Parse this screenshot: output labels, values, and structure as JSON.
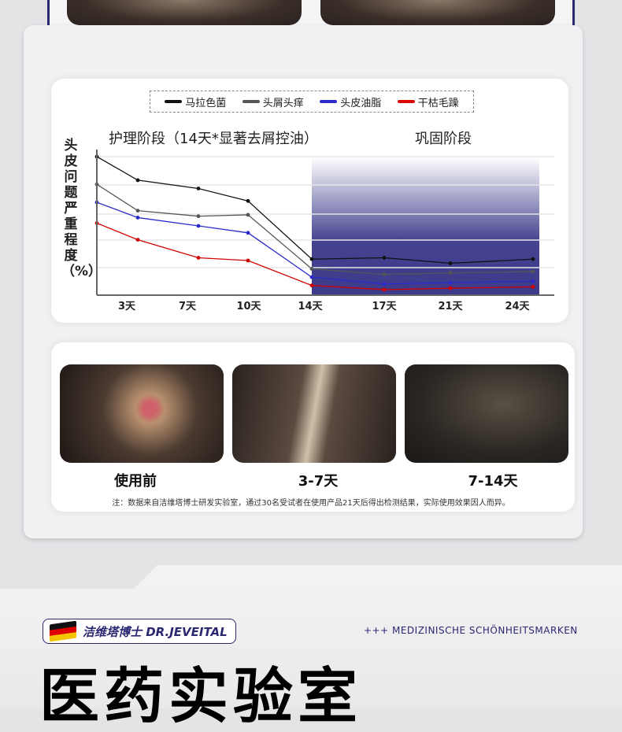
{
  "legend": [
    {
      "label": "马拉色菌",
      "color": "#111111"
    },
    {
      "label": "头屑头痒",
      "color": "#555555"
    },
    {
      "label": "头皮油脂",
      "color": "#2b2bcc"
    },
    {
      "label": "干枯毛躁",
      "color": "#d00000"
    }
  ],
  "chart_data": {
    "type": "line",
    "ylabel": "头皮问题严重程度（%）",
    "phases": [
      "护理阶段（14天*显著去屑控油）",
      "巩固阶段"
    ],
    "categories": [
      "",
      "3天",
      "7天",
      "10天",
      "14天",
      "17天",
      "21天",
      "24天"
    ],
    "ylim": [
      0,
      100
    ],
    "grid": true,
    "legend_position": "top",
    "series": [
      {
        "name": "马拉色菌",
        "values": [
          100,
          83,
          77,
          68,
          26,
          27,
          23,
          26
        ]
      },
      {
        "name": "头屑头痒",
        "values": [
          80,
          61,
          57,
          58,
          19,
          15,
          16,
          17
        ]
      },
      {
        "name": "头皮油脂",
        "values": [
          67,
          56,
          50,
          45,
          13,
          8,
          9,
          10
        ]
      },
      {
        "name": "干枯毛躁",
        "values": [
          52,
          40,
          27,
          25,
          7,
          4,
          5,
          6
        ]
      }
    ],
    "shaded_color": "#3c3a8a"
  },
  "photos": [
    {
      "label": "使用前"
    },
    {
      "label": "3-7天"
    },
    {
      "label": "7-14天"
    }
  ],
  "note": "注：数据来自洁维塔博士研发实验室，通过30名受试者在使用产品21天后得出检测结果，实际使用效果因人而异。",
  "brand": {
    "name": "洁维塔博士 DR.JEVEITAL",
    "tagline": "+++ MEDIZINISCHE SCHÖNHEITSMARKEN"
  },
  "headline": "医药实验室"
}
